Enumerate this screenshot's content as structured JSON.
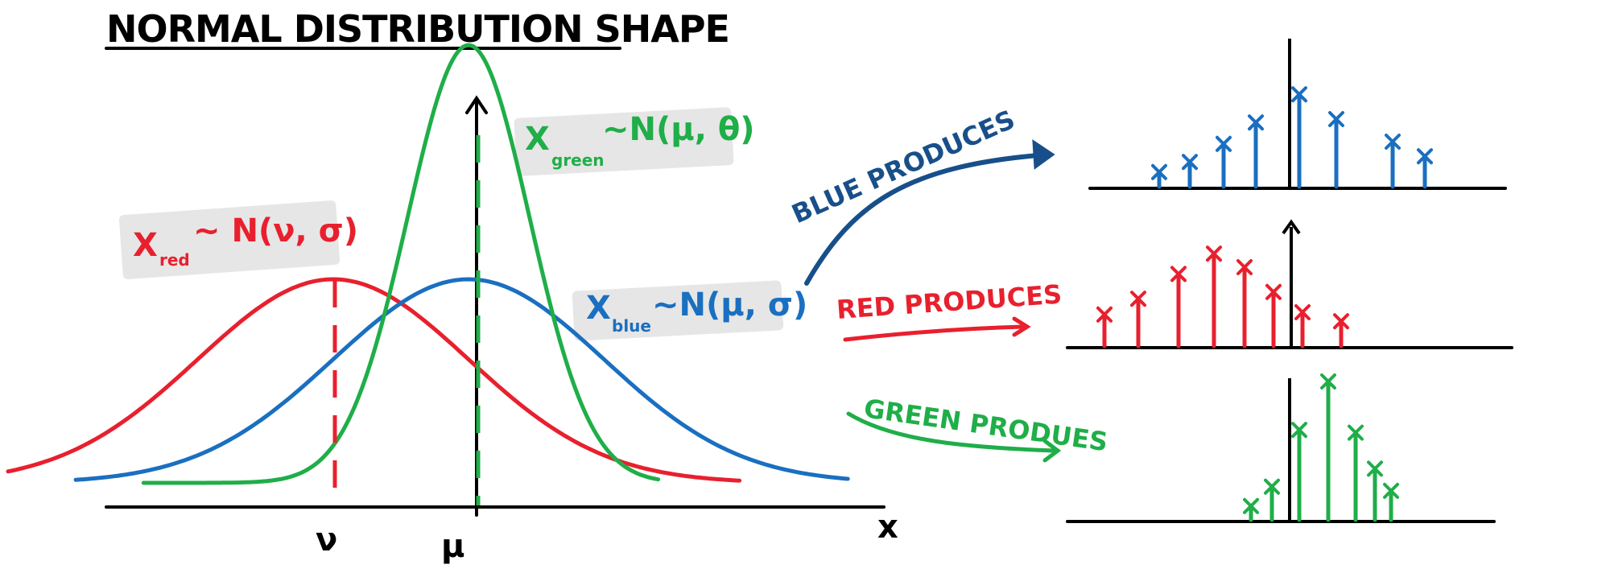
{
  "title": "NORMAL DISTRIBUTION SHAPE",
  "axes": {
    "x_label": "x",
    "tick_nu": "ν",
    "tick_mu": "μ"
  },
  "labels": {
    "red": {
      "x": "X",
      "sub": "red",
      "dist": "~ N(ν, σ)"
    },
    "green": {
      "x": "X",
      "sub": "green",
      "dist": "~N(μ, θ)"
    },
    "blue": {
      "x": "X",
      "sub": "blue",
      "dist": "~N(μ, σ)"
    }
  },
  "produces": {
    "blue": "BLUE PRODUCES",
    "red": "RED PRODUCES",
    "green": "GREEN PRODUES"
  },
  "colors": {
    "red": "#e8202e",
    "green": "#1fae48",
    "blue": "#1a6fc0",
    "dark_blue": "#184f8a",
    "axis": "#000000",
    "label_bg": "#e6e6e6"
  },
  "chart_data": {
    "type": "line",
    "series": [
      {
        "name": "red",
        "mean": 0,
        "sd": 1.0,
        "peak": 1.0
      },
      {
        "name": "blue",
        "mean": 1,
        "sd": 1.0,
        "peak": 1.0
      },
      {
        "name": "green",
        "mean": 1,
        "sd": 0.45,
        "peak": 2.15
      }
    ],
    "xlim": [
      -2.4,
      3.9
    ],
    "samples": {
      "blue": [
        0.13,
        0.22,
        0.38,
        0.57,
        0.82,
        0.6,
        0.4,
        0.27
      ],
      "red": [
        0.28,
        0.42,
        0.64,
        0.82,
        0.7,
        0.48,
        0.3,
        0.22
      ],
      "green": [
        0.1,
        0.24,
        0.65,
        1.0,
        0.63,
        0.37,
        0.21
      ]
    }
  }
}
